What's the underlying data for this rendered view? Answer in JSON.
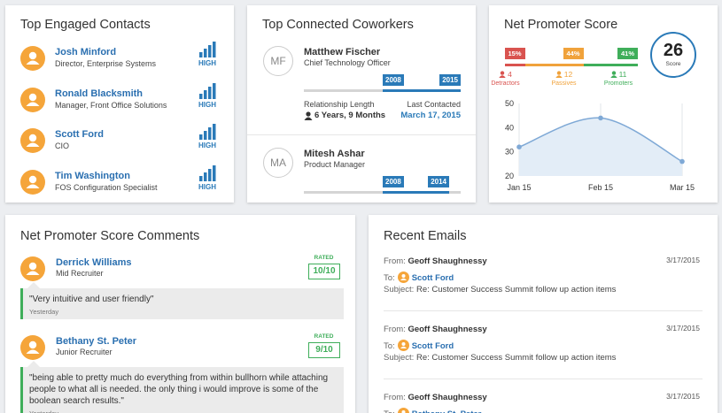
{
  "contacts": {
    "title": "Top Engaged Contacts",
    "items": [
      {
        "name": "Josh Minford",
        "role": "Director, Enterprise Systems",
        "level": "HIGH"
      },
      {
        "name": "Ronald Blacksmith",
        "role": "Manager, Front Office Solutions",
        "level": "HIGH"
      },
      {
        "name": "Scott Ford",
        "role": "CIO",
        "level": "HIGH"
      },
      {
        "name": "Tim Washington",
        "role": "FOS Configuration Specialist",
        "level": "HIGH"
      }
    ]
  },
  "coworkers": {
    "title": "Top Connected Coworkers",
    "items": [
      {
        "initials": "MF",
        "name": "Matthew Fischer",
        "role": "Chief Technology Officer",
        "start": "2008",
        "end": "2015",
        "length_label": "Relationship Length",
        "length": "6 Years, 9 Months",
        "contacted_label": "Last Contacted",
        "contacted": "March 17, 2015"
      },
      {
        "initials": "MA",
        "name": "Mitesh Ashar",
        "role": "Product Manager",
        "start": "2008",
        "end": "2014"
      }
    ]
  },
  "nps": {
    "title": "Net Promoter Score",
    "score": "26",
    "score_label": "Score",
    "segments": [
      {
        "share": {
          "value": 15,
          "label": "15%"
        },
        "count": "4",
        "name": "Detractors",
        "color": "#d9534f"
      },
      {
        "share": {
          "value": 44,
          "label": "44%"
        },
        "count": "12",
        "name": "Passives",
        "color": "#f0a23b"
      },
      {
        "share": {
          "value": 41,
          "label": "41%"
        },
        "count": "11",
        "name": "Promoters",
        "color": "#3fae5a"
      }
    ],
    "chart": {
      "type": "line",
      "categories": [
        "Jan 15",
        "Feb 15",
        "Mar 15"
      ],
      "values": [
        32,
        44,
        26
      ],
      "ylim": [
        20,
        50
      ],
      "yticks": [
        20,
        30,
        40,
        50
      ],
      "color": "#7fa9d6"
    }
  },
  "comments": {
    "title": "Net Promoter Score Comments",
    "items": [
      {
        "name": "Derrick Williams",
        "role": "Mid Recruiter",
        "rated_label": "RATED",
        "rating": "10/10",
        "text": "\"Very intuitive and user friendly\"",
        "when": "Yesterday"
      },
      {
        "name": "Bethany St. Peter",
        "role": "Junior Recruiter",
        "rated_label": "RATED",
        "rating": "9/10",
        "text": "\"being able to pretty much do everything from within bullhorn while attaching people to what all is needed. the only thing i would improve is some of the boolean search results.\"",
        "when": "Yesterday"
      }
    ]
  },
  "emails": {
    "title": "Recent Emails",
    "items": [
      {
        "from_label": "From:",
        "from": "Geoff Shaughnessy",
        "to_label": "To:",
        "to": "Scott Ford",
        "subject_label": "Subject:",
        "subject": "Re: Customer Success Summit follow up action items",
        "date": "3/17/2015"
      },
      {
        "from_label": "From:",
        "from": "Geoff Shaughnessy",
        "to_label": "To:",
        "to": "Scott Ford",
        "subject_label": "Subject:",
        "subject": "Re: Customer Success Summit follow up action items",
        "date": "3/17/2015"
      },
      {
        "from_label": "From:",
        "from": "Geoff Shaughnessy",
        "to_label": "To:",
        "to": "Bethany St. Peter",
        "date": "3/17/2015"
      }
    ]
  }
}
